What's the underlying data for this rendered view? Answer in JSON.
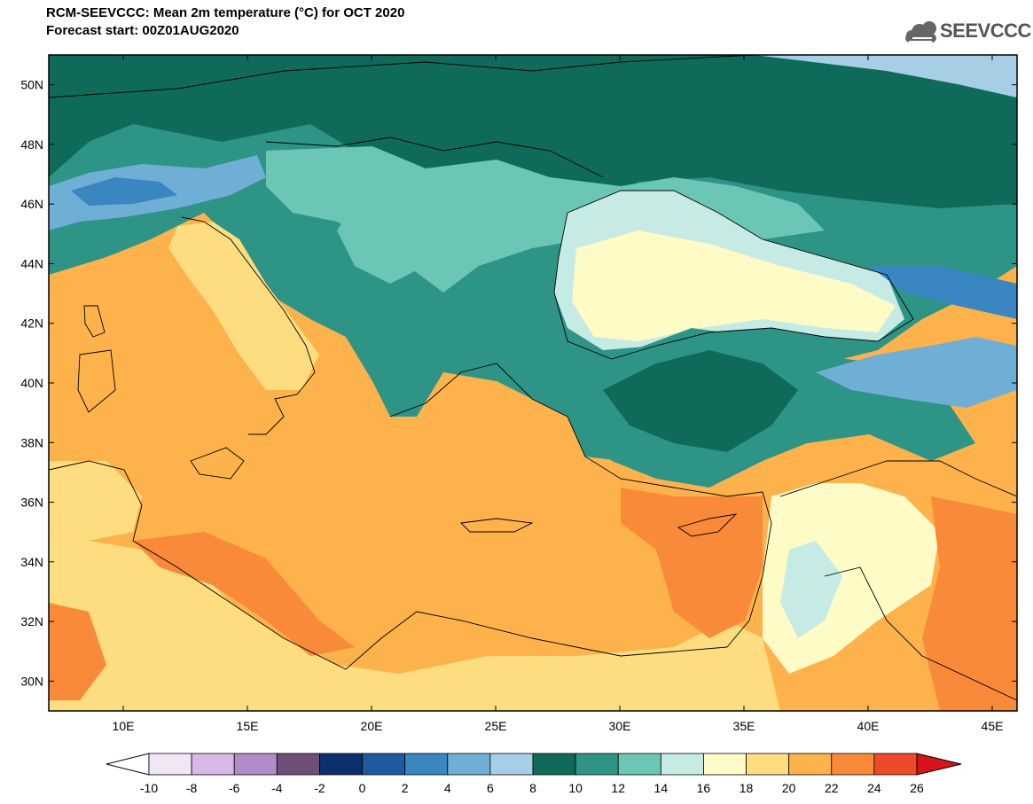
{
  "title": {
    "line1": "RCM-SEEVCCC: Mean 2m temperature (°C) for OCT 2020",
    "line2": "Forecast start: 00Z01AUG2020"
  },
  "logo": {
    "text": "SEEVCCC",
    "icon": "cloud-icon"
  },
  "map": {
    "extent": {
      "lon_min": 7,
      "lon_max": 46,
      "lat_min": 29,
      "lat_max": 51
    },
    "lat_ticks": [
      "30N",
      "32N",
      "34N",
      "36N",
      "38N",
      "40N",
      "42N",
      "44N",
      "46N",
      "48N",
      "50N"
    ],
    "lon_ticks": [
      "10E",
      "15E",
      "20E",
      "25E",
      "30E",
      "35E",
      "40E",
      "45E"
    ],
    "lat_values": [
      30,
      32,
      34,
      36,
      38,
      40,
      42,
      44,
      46,
      48,
      50
    ],
    "lon_values": [
      10,
      15,
      20,
      25,
      30,
      35,
      40,
      45
    ],
    "variable": "Mean 2m temperature",
    "unit": "°C"
  },
  "colorbar": {
    "labels": [
      "-10",
      "-8",
      "-6",
      "-4",
      "-2",
      "0",
      "2",
      "4",
      "6",
      "8",
      "10",
      "12",
      "14",
      "16",
      "18",
      "20",
      "22",
      "24",
      "26"
    ],
    "colors": [
      "#f1e6f6",
      "#d8b8e6",
      "#b08cc8",
      "#6e4f78",
      "#0c2f6e",
      "#1e5aa0",
      "#3a86c0",
      "#6fafd6",
      "#a6cfe6",
      "#0f6a5a",
      "#2e9486",
      "#6cc6b6",
      "#c6ebe4",
      "#fefbc6",
      "#fedc80",
      "#fdb24c",
      "#f98a3a",
      "#ee4a2a"
    ],
    "under_color": "#ffffff",
    "over_color": "#d8141a"
  }
}
